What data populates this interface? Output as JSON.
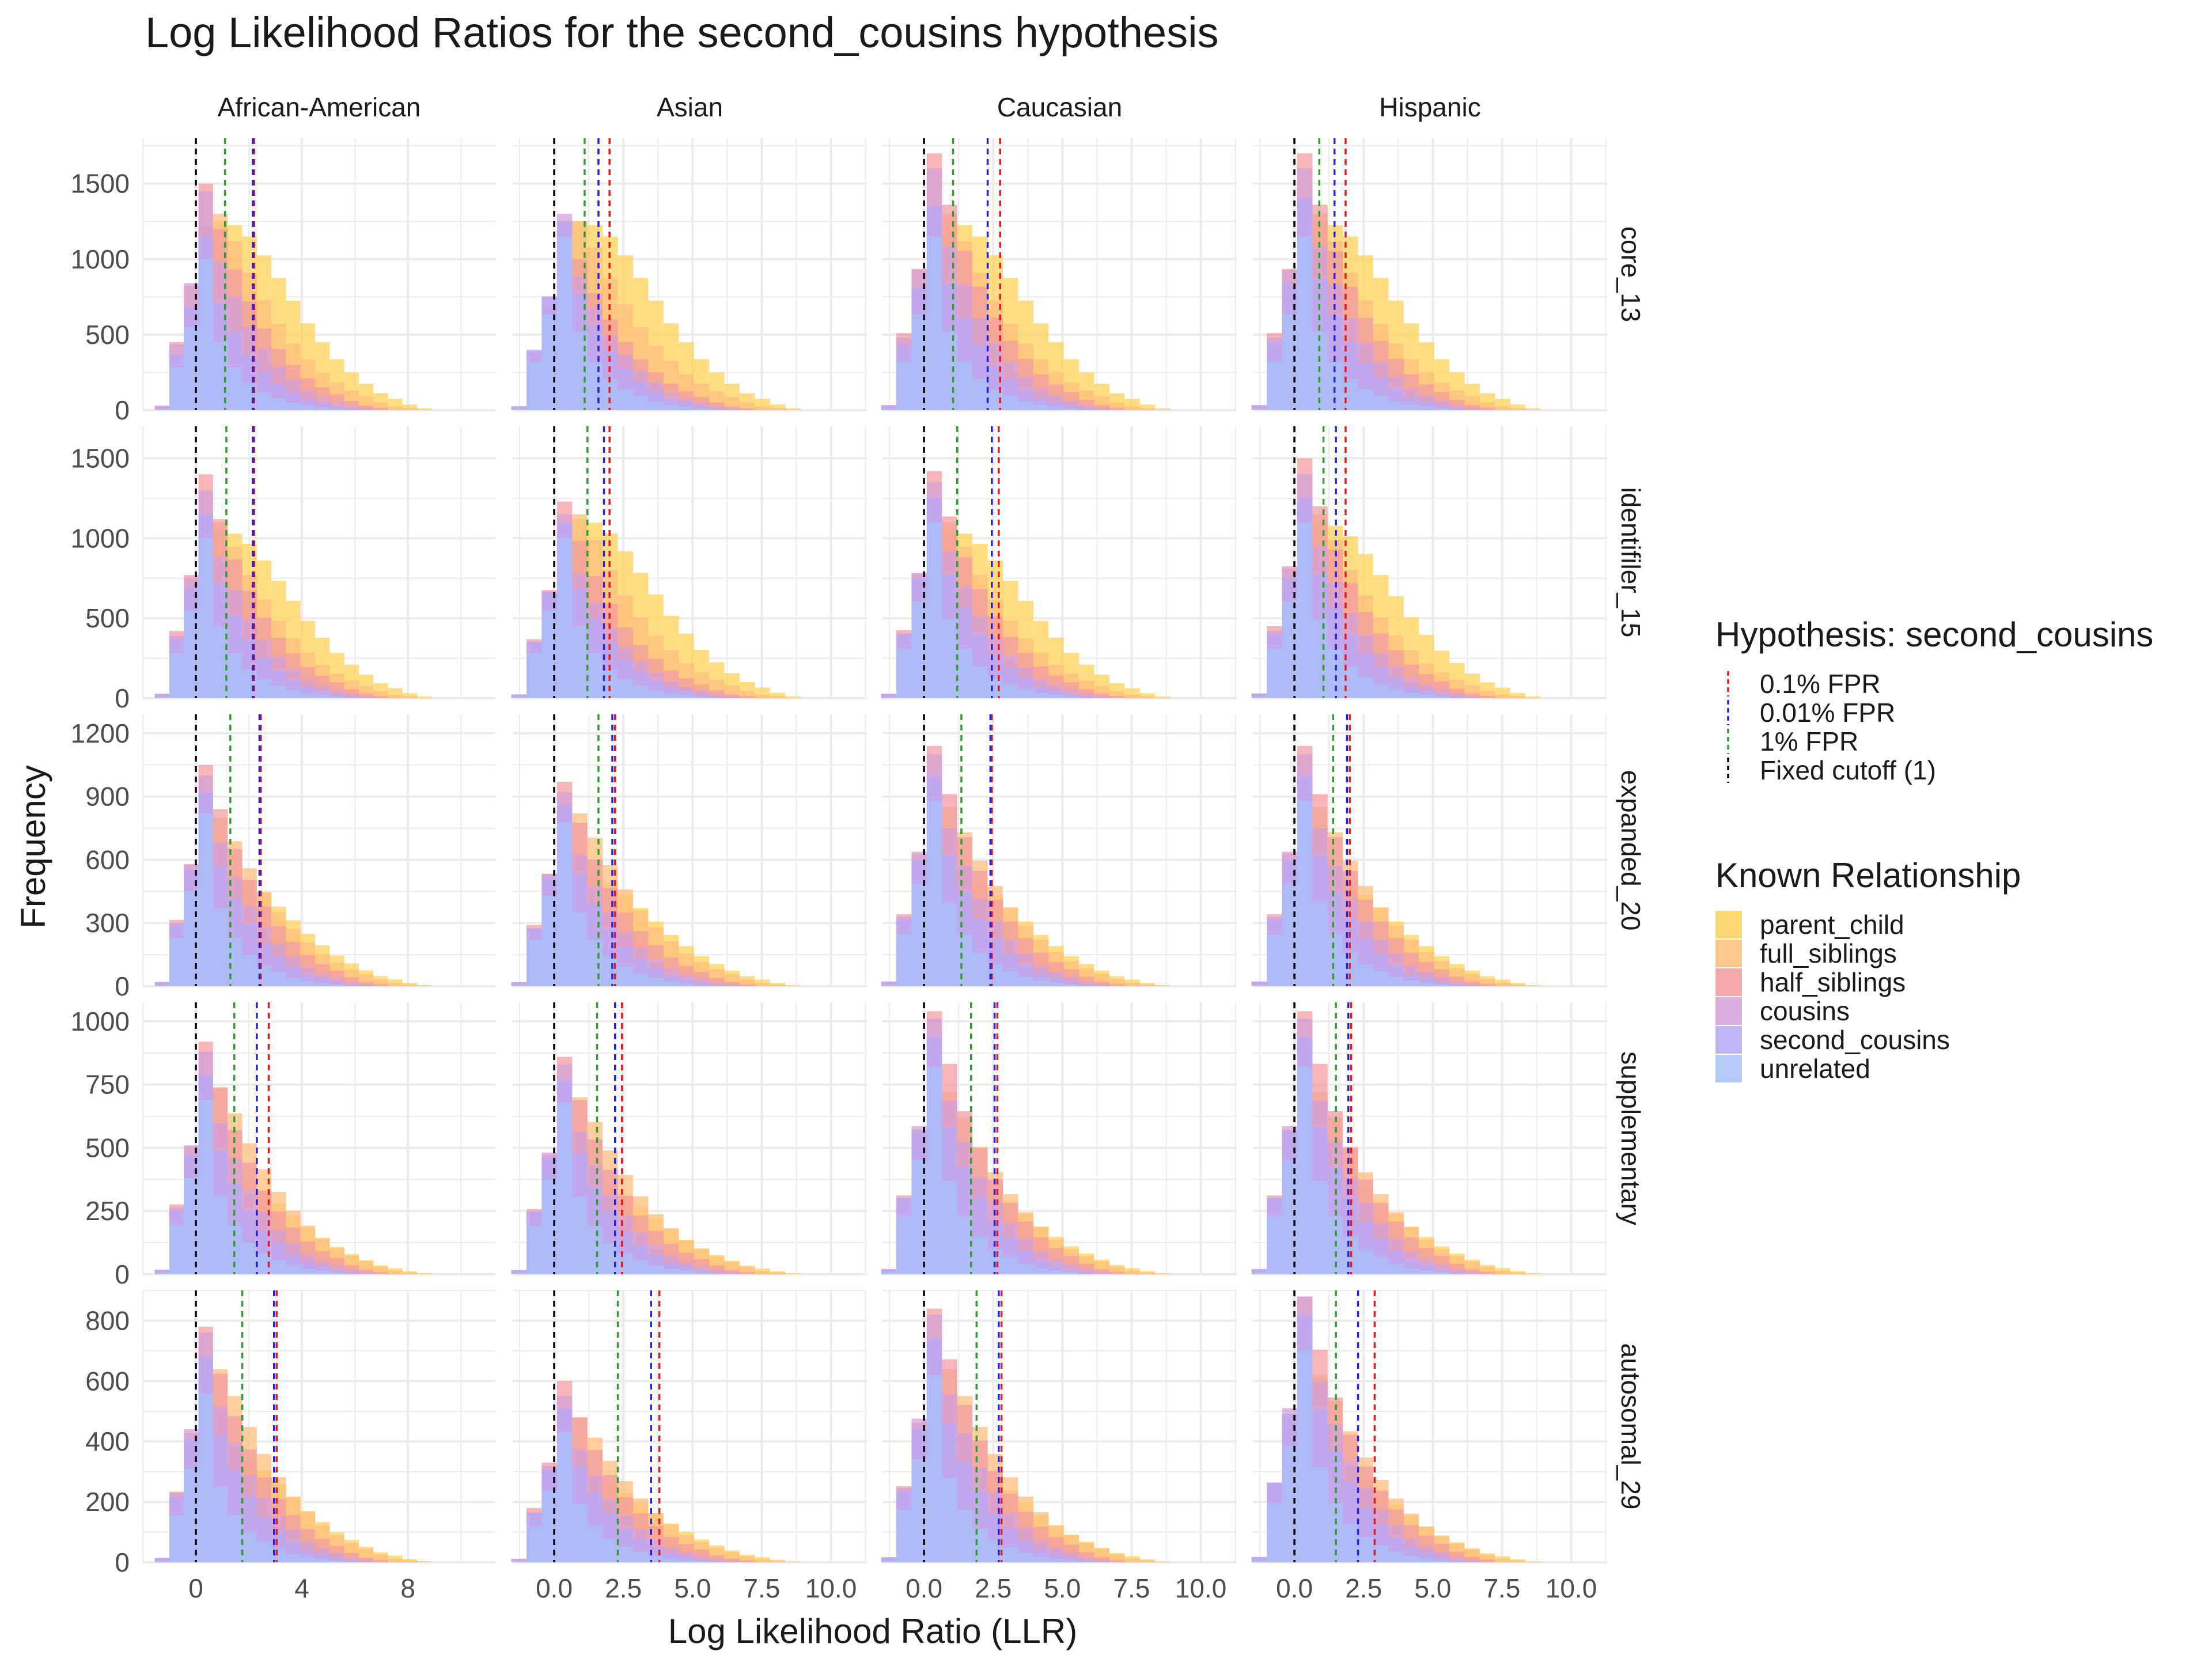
{
  "chart_data": {
    "type": "histogram-facets",
    "title": "Log Likelihood Ratios for the second_cousins hypothesis",
    "xlabel": "Log Likelihood Ratio (LLR)",
    "ylabel": "Frequency",
    "columns": [
      "African-American",
      "Asian",
      "Caucasian",
      "Hispanic"
    ],
    "rows": [
      "core_13",
      "identifiler_15",
      "expanded_20",
      "supplementary",
      "autosomal_29"
    ],
    "x_axes": [
      {
        "range": [
          -2,
          11.3
        ],
        "ticks": [
          0,
          4,
          8
        ],
        "tick_labels": [
          "0",
          "4",
          "8"
        ]
      },
      {
        "range": [
          -1.5,
          11.3
        ],
        "ticks": [
          0,
          2.5,
          5,
          7.5,
          10
        ],
        "tick_labels": [
          "0.0",
          "2.5",
          "5.0",
          "7.5",
          "10.0"
        ]
      },
      {
        "range": [
          -1.5,
          11.3
        ],
        "ticks": [
          0,
          2.5,
          5,
          7.5,
          10
        ],
        "tick_labels": [
          "0.0",
          "2.5",
          "5.0",
          "7.5",
          "10.0"
        ]
      },
      {
        "range": [
          -1.5,
          11.3
        ],
        "ticks": [
          0,
          2.5,
          5,
          7.5,
          10
        ],
        "tick_labels": [
          "0.0",
          "2.5",
          "5.0",
          "7.5",
          "10.0"
        ]
      }
    ],
    "y_axes": [
      {
        "range": [
          0,
          1800
        ],
        "ticks": [
          0,
          500,
          1000,
          1500
        ],
        "tick_labels": [
          "0",
          "500",
          "1000",
          "1500"
        ]
      },
      {
        "range": [
          0,
          1700
        ],
        "ticks": [
          0,
          500,
          1000,
          1500
        ],
        "tick_labels": [
          "0",
          "500",
          "1000",
          "1500"
        ]
      },
      {
        "range": [
          0,
          1290
        ],
        "ticks": [
          0,
          300,
          600,
          900,
          1200
        ],
        "tick_labels": [
          "0",
          "300",
          "600",
          "900",
          "1200"
        ]
      },
      {
        "range": [
          0,
          1075
        ],
        "ticks": [
          0,
          250,
          500,
          750,
          1000
        ],
        "tick_labels": [
          "0",
          "250",
          "500",
          "750",
          "1000"
        ]
      },
      {
        "range": [
          0,
          900
        ],
        "ticks": [
          0,
          200,
          400,
          600,
          800
        ],
        "tick_labels": [
          "0",
          "200",
          "400",
          "600",
          "800"
        ]
      }
    ],
    "bin_width": 0.55,
    "rel_order": [
      "parent_child",
      "full_siblings",
      "half_siblings",
      "cousins",
      "second_cousins",
      "unrelated"
    ],
    "relationships": [
      {
        "name": "parent_child",
        "color": "#FFD15A"
      },
      {
        "name": "full_siblings",
        "color": "#FFBE7D"
      },
      {
        "name": "half_siblings",
        "color": "#F39CA0"
      },
      {
        "name": "cousins",
        "color": "#D4A1DB"
      },
      {
        "name": "second_cousins",
        "color": "#B7A8F5"
      },
      {
        "name": "unrelated",
        "color": "#A8C2FB"
      }
    ],
    "cutoffs": [
      {
        "name": "0.1% FPR",
        "color": "#E41A1C"
      },
      {
        "name": "0.01% FPR",
        "color": "#2222E0"
      },
      {
        "name": "1% FPR",
        "color": "#2E9E2E"
      },
      {
        "name": "Fixed cutoff (1)",
        "color": "#000000"
      }
    ],
    "legend_hypothesis_title": "Hypothesis: second_cousins",
    "legend_relationship_title": "Known Relationship",
    "legend_position": "right",
    "grid": true,
    "panels": [
      {
        "row": "core_13",
        "column": "African-American",
        "cutoffs": {
          "0.1% FPR": 2.2,
          "0.01% FPR": 2.15,
          "1% FPR": 1.1,
          "Fixed cutoff (1)": 0
        },
        "peaks": {
          "unrelated": 1000,
          "second_cousins": 1150,
          "cousins": 1450,
          "half_siblings": 1500,
          "full_siblings": 1300,
          "parent_child": 1250
        }
      },
      {
        "row": "core_13",
        "column": "Asian",
        "cutoffs": {
          "0.1% FPR": 2.0,
          "0.01% FPR": 1.6,
          "1% FPR": 1.1,
          "Fixed cutoff (1)": 0
        },
        "peaks": {
          "unrelated": 1150,
          "second_cousins": 1250,
          "cousins": 1300,
          "half_siblings": 1250,
          "full_siblings": 1250,
          "parent_child": 1250
        }
      },
      {
        "row": "core_13",
        "column": "Caucasian",
        "cutoffs": {
          "0.1% FPR": 2.75,
          "0.01% FPR": 2.3,
          "1% FPR": 1.05,
          "Fixed cutoff (1)": 0
        },
        "peaks": {
          "unrelated": 1150,
          "second_cousins": 1350,
          "cousins": 1600,
          "half_siblings": 1700,
          "full_siblings": 1300,
          "parent_child": 1250
        }
      },
      {
        "row": "core_13",
        "column": "Hispanic",
        "cutoffs": {
          "0.1% FPR": 1.85,
          "0.01% FPR": 1.45,
          "1% FPR": 0.9,
          "Fixed cutoff (1)": 0
        },
        "peaks": {
          "unrelated": 1150,
          "second_cousins": 1400,
          "cousins": 1600,
          "half_siblings": 1700,
          "full_siblings": 1300,
          "parent_child": 1250
        }
      },
      {
        "row": "identifiler_15",
        "column": "African-American",
        "cutoffs": {
          "0.1% FPR": 2.2,
          "0.01% FPR": 2.15,
          "1% FPR": 1.15,
          "Fixed cutoff (1)": 0
        },
        "peaks": {
          "unrelated": 1000,
          "second_cousins": 1150,
          "cousins": 1300,
          "half_siblings": 1400,
          "full_siblings": 1100,
          "parent_child": 1050
        }
      },
      {
        "row": "identifiler_15",
        "column": "Asian",
        "cutoffs": {
          "0.1% FPR": 2.0,
          "0.01% FPR": 1.8,
          "1% FPR": 1.2,
          "Fixed cutoff (1)": 0
        },
        "peaks": {
          "unrelated": 1000,
          "second_cousins": 1100,
          "cousins": 1150,
          "half_siblings": 1230,
          "full_siblings": 1150,
          "parent_child": 1120
        }
      },
      {
        "row": "identifiler_15",
        "column": "Caucasian",
        "cutoffs": {
          "0.1% FPR": 2.7,
          "0.01% FPR": 2.45,
          "1% FPR": 1.2,
          "Fixed cutoff (1)": 0
        },
        "peaks": {
          "unrelated": 1100,
          "second_cousins": 1250,
          "cousins": 1350,
          "half_siblings": 1420,
          "full_siblings": 1100,
          "parent_child": 1050
        }
      },
      {
        "row": "identifiler_15",
        "column": "Hispanic",
        "cutoffs": {
          "0.1% FPR": 1.85,
          "0.01% FPR": 1.5,
          "1% FPR": 1.05,
          "Fixed cutoff (1)": 0
        },
        "peaks": {
          "unrelated": 1100,
          "second_cousins": 1250,
          "cousins": 1400,
          "half_siblings": 1500,
          "full_siblings": 1150,
          "parent_child": 1100
        }
      },
      {
        "row": "expanded_20",
        "column": "African-American",
        "cutoffs": {
          "0.1% FPR": 2.45,
          "0.01% FPR": 2.4,
          "1% FPR": 1.3,
          "Fixed cutoff (1)": 0
        },
        "peaks": {
          "unrelated": 820,
          "second_cousins": 920,
          "cousins": 1000,
          "half_siblings": 1050,
          "full_siblings": 800,
          "parent_child": 540
        }
      },
      {
        "row": "expanded_20",
        "column": "Asian",
        "cutoffs": {
          "0.1% FPR": 2.2,
          "0.01% FPR": 2.1,
          "1% FPR": 1.6,
          "Fixed cutoff (1)": 0
        },
        "peaks": {
          "unrelated": 780,
          "second_cousins": 860,
          "cousins": 920,
          "half_siblings": 970,
          "full_siblings": 820,
          "parent_child": 530
        }
      },
      {
        "row": "expanded_20",
        "column": "Caucasian",
        "cutoffs": {
          "0.1% FPR": 2.45,
          "0.01% FPR": 2.4,
          "1% FPR": 1.35,
          "Fixed cutoff (1)": 0
        },
        "peaks": {
          "unrelated": 880,
          "second_cousins": 1000,
          "cousins": 1100,
          "half_siblings": 1140,
          "full_siblings": 850,
          "parent_child": 530
        }
      },
      {
        "row": "expanded_20",
        "column": "Hispanic",
        "cutoffs": {
          "0.1% FPR": 2.0,
          "0.01% FPR": 1.9,
          "1% FPR": 1.4,
          "Fixed cutoff (1)": 0
        },
        "peaks": {
          "unrelated": 880,
          "second_cousins": 1000,
          "cousins": 1100,
          "half_siblings": 1140,
          "full_siblings": 850,
          "parent_child": 530
        }
      },
      {
        "row": "supplementary",
        "column": "African-American",
        "cutoffs": {
          "0.1% FPR": 2.75,
          "0.01% FPR": 2.3,
          "1% FPR": 1.45,
          "Fixed cutoff (1)": 0
        },
        "peaks": {
          "unrelated": 690,
          "second_cousins": 790,
          "cousins": 880,
          "half_siblings": 920,
          "full_siblings": 740,
          "parent_child": 400
        }
      },
      {
        "row": "supplementary",
        "column": "Asian",
        "cutoffs": {
          "0.1% FPR": 2.45,
          "0.01% FPR": 2.2,
          "1% FPR": 1.55,
          "Fixed cutoff (1)": 0
        },
        "peaks": {
          "unrelated": 680,
          "second_cousins": 770,
          "cousins": 830,
          "half_siblings": 860,
          "full_siblings": 700,
          "parent_child": 380
        }
      },
      {
        "row": "supplementary",
        "column": "Caucasian",
        "cutoffs": {
          "0.1% FPR": 2.65,
          "0.01% FPR": 2.55,
          "1% FPR": 1.7,
          "Fixed cutoff (1)": 0
        },
        "peaks": {
          "unrelated": 820,
          "second_cousins": 940,
          "cousins": 1010,
          "half_siblings": 1040,
          "full_siblings": 720,
          "parent_child": 410
        }
      },
      {
        "row": "supplementary",
        "column": "Hispanic",
        "cutoffs": {
          "0.1% FPR": 2.05,
          "0.01% FPR": 1.95,
          "1% FPR": 1.5,
          "Fixed cutoff (1)": 0
        },
        "peaks": {
          "unrelated": 820,
          "second_cousins": 940,
          "cousins": 1010,
          "half_siblings": 1040,
          "full_siblings": 720,
          "parent_child": 410
        }
      },
      {
        "row": "autosomal_29",
        "column": "African-American",
        "cutoffs": {
          "0.1% FPR": 3.05,
          "0.01% FPR": 2.95,
          "1% FPR": 1.75,
          "Fixed cutoff (1)": 0
        },
        "peaks": {
          "unrelated": 560,
          "second_cousins": 680,
          "cousins": 760,
          "half_siblings": 780,
          "full_siblings": 640,
          "parent_child": 370
        }
      },
      {
        "row": "autosomal_29",
        "column": "Asian",
        "cutoffs": {
          "0.1% FPR": 3.8,
          "0.01% FPR": 3.5,
          "1% FPR": 2.3,
          "Fixed cutoff (1)": 0
        },
        "peaks": {
          "unrelated": 430,
          "second_cousins": 510,
          "cousins": 550,
          "half_siblings": 600,
          "full_siblings": 480,
          "parent_child": 280
        }
      },
      {
        "row": "autosomal_29",
        "column": "Caucasian",
        "cutoffs": {
          "0.1% FPR": 2.8,
          "0.01% FPR": 2.7,
          "1% FPR": 1.9,
          "Fixed cutoff (1)": 0
        },
        "peaks": {
          "unrelated": 620,
          "second_cousins": 740,
          "cousins": 820,
          "half_siblings": 840,
          "full_siblings": 640,
          "parent_child": 340
        }
      },
      {
        "row": "autosomal_29",
        "column": "Hispanic",
        "cutoffs": {
          "0.1% FPR": 2.9,
          "0.01% FPR": 2.3,
          "1% FPR": 1.5,
          "Fixed cutoff (1)": 0
        },
        "peaks": {
          "unrelated": 700,
          "second_cousins": 820,
          "cousins": 880,
          "half_siblings": 880,
          "full_siblings": 620,
          "parent_child": 330
        }
      }
    ]
  }
}
